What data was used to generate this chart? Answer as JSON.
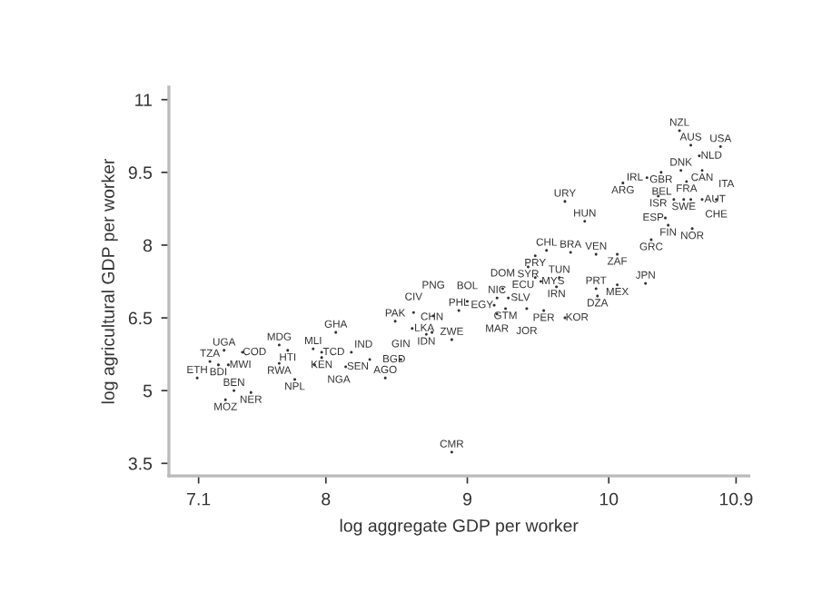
{
  "chart_data": {
    "type": "scatter",
    "xlabel": "log aggregate GDP per worker",
    "ylabel": "log agricultural GDP per worker",
    "xlim": [
      6.89,
      10.99
    ],
    "ylim": [
      3.24,
      11.26
    ],
    "xticks": [
      7.1,
      8,
      9,
      10,
      10.9
    ],
    "yticks": [
      3.5,
      5,
      6.5,
      8,
      9.5,
      11
    ],
    "grid": false,
    "marker": "circle",
    "series": [
      {
        "color": "#333333",
        "x": [
          7.09,
          7.18,
          7.24,
          7.31,
          7.28,
          7.41,
          7.35,
          7.47,
          7.29,
          7.67,
          7.73,
          7.67,
          7.78,
          7.91,
          7.97,
          7.97,
          7.92,
          8.18,
          8.14,
          8.31,
          8.53,
          8.42,
          8.07,
          8.49,
          8.61,
          8.71,
          8.75,
          8.89,
          8.62,
          8.76,
          8.94,
          9.0,
          8.89,
          10.5,
          10.58,
          10.79,
          10.64,
          10.51,
          10.66,
          10.55,
          10.37,
          10.27,
          10.1,
          10.35,
          10.46,
          10.53,
          10.58,
          10.66,
          10.76,
          10.4,
          10.42,
          10.59,
          10.3,
          9.69,
          9.83,
          9.56,
          9.48,
          9.43,
          9.73,
          9.91,
          10.06,
          9.48,
          9.65,
          9.52,
          9.63,
          9.91,
          10.06,
          10.26,
          9.92,
          9.25,
          9.21,
          9.29,
          9.19,
          9.27,
          9.21,
          9.42,
          9.54,
          9.69
        ],
        "values": [
          5.26,
          5.6,
          5.53,
          5.53,
          5.83,
          5.79,
          5.0,
          4.96,
          4.81,
          5.94,
          5.83,
          5.56,
          5.23,
          5.86,
          5.79,
          5.68,
          5.53,
          5.79,
          5.49,
          5.64,
          5.64,
          5.26,
          6.2,
          6.43,
          6.28,
          6.16,
          6.2,
          6.05,
          6.61,
          6.54,
          6.65,
          6.84,
          3.73,
          10.36,
          10.06,
          10.03,
          9.84,
          9.54,
          9.54,
          9.31,
          9.5,
          9.39,
          9.28,
          9.01,
          8.94,
          8.94,
          8.94,
          8.94,
          8.94,
          8.56,
          8.41,
          8.34,
          8.11,
          8.9,
          8.49,
          7.89,
          7.78,
          7.55,
          7.85,
          7.81,
          7.81,
          7.33,
          7.33,
          7.25,
          7.14,
          7.1,
          7.18,
          7.21,
          6.95,
          7.1,
          6.91,
          6.91,
          6.76,
          6.69,
          6.58,
          6.69,
          6.65,
          6.5
        ],
        "value_labels": [
          "ETH",
          "TZA",
          "BDI",
          "MWI",
          "UGA",
          "COD",
          "BEN",
          "NER",
          "MOZ",
          "MDG",
          "HTI",
          "RWA",
          "NPL",
          "MLI",
          "TCD",
          "KEN",
          "NGA",
          "IND",
          "SEN",
          "BGD",
          "GIN",
          "AGO",
          "GHA",
          "PAK",
          "LKA",
          "IDN",
          "CHN",
          "ZWE",
          "CIV",
          "PNG",
          "PHL",
          "BOL",
          "CMR",
          "NZL",
          "AUS",
          "USA",
          "NLD",
          "DNK",
          "CAN",
          "FRA",
          "GBR",
          "IRL",
          "ARG",
          "ISR",
          "BEL",
          "SWE",
          "AUT",
          "ITA",
          "CHE",
          "ESP",
          "FIN",
          "NOR",
          "GRC",
          "URY",
          "HUN",
          "CHL",
          "PRY",
          "SYR",
          "BRA",
          "VEN",
          "ZAF",
          "ECU",
          "TUN",
          "MYS",
          "IRN",
          "PRT",
          "MEX",
          "JPN",
          "DZA",
          "DOM",
          "NIC",
          "SLV",
          "EGY",
          "GTM",
          "MAR",
          "JOR",
          "PER",
          "KOR"
        ]
      }
    ]
  }
}
